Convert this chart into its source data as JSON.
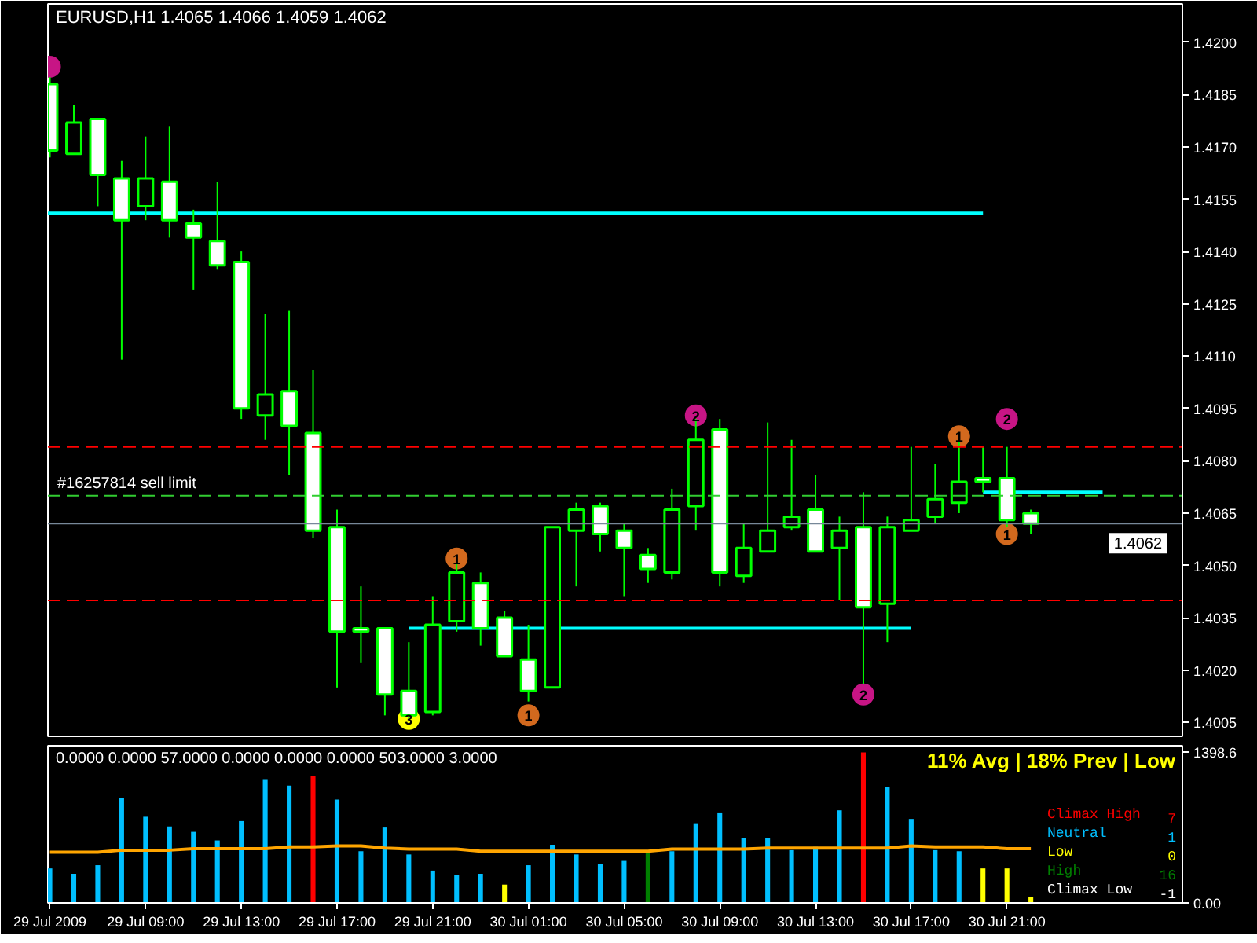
{
  "chart_data": [
    {
      "type": "candlestick",
      "title": "EURUSD,H1  1.4065 1.4066 1.4059 1.4062",
      "color": "#00ff00",
      "x": [
        "2009-07-29T05:00",
        "2009-07-29T06:00",
        "2009-07-29T07:00",
        "2009-07-29T08:00",
        "2009-07-29T09:00",
        "2009-07-29T10:00",
        "2009-07-29T11:00",
        "2009-07-29T12:00",
        "2009-07-29T13:00",
        "2009-07-29T14:00",
        "2009-07-29T15:00",
        "2009-07-29T16:00",
        "2009-07-29T17:00",
        "2009-07-29T18:00",
        "2009-07-29T19:00",
        "2009-07-29T20:00",
        "2009-07-29T21:00",
        "2009-07-29T22:00",
        "2009-07-29T23:00",
        "2009-07-30T00:00",
        "2009-07-30T01:00",
        "2009-07-30T02:00",
        "2009-07-30T03:00",
        "2009-07-30T04:00",
        "2009-07-30T05:00",
        "2009-07-30T06:00",
        "2009-07-30T07:00",
        "2009-07-30T08:00",
        "2009-07-30T09:00",
        "2009-07-30T10:00",
        "2009-07-30T11:00",
        "2009-07-30T12:00",
        "2009-07-30T13:00",
        "2009-07-30T14:00",
        "2009-07-30T15:00",
        "2009-07-30T16:00",
        "2009-07-30T17:00",
        "2009-07-30T18:00",
        "2009-07-30T19:00",
        "2009-07-30T20:00",
        "2009-07-30T21:00",
        "2009-07-30T22:00"
      ],
      "ohlc": [
        [
          1.4188,
          1.419,
          1.4167,
          1.4169
        ],
        [
          1.4168,
          1.4182,
          1.4168,
          1.4177
        ],
        [
          1.4178,
          1.4178,
          1.4153,
          1.4162
        ],
        [
          1.4161,
          1.4166,
          1.4109,
          1.4149
        ],
        [
          1.4153,
          1.4173,
          1.4149,
          1.4161
        ],
        [
          1.416,
          1.4176,
          1.4144,
          1.4149
        ],
        [
          1.4148,
          1.4152,
          1.4129,
          1.4144
        ],
        [
          1.4143,
          1.416,
          1.4135,
          1.4136
        ],
        [
          1.4137,
          1.414,
          1.4092,
          1.4095
        ],
        [
          1.4093,
          1.4122,
          1.4086,
          1.4099
        ],
        [
          1.41,
          1.4123,
          1.4076,
          1.409
        ],
        [
          1.4088,
          1.4106,
          1.4058,
          1.406
        ],
        [
          1.4061,
          1.4066,
          1.4015,
          1.4031
        ],
        [
          1.4032,
          1.4044,
          1.4022,
          1.4031
        ],
        [
          1.4032,
          1.4032,
          1.4007,
          1.4013
        ],
        [
          1.4014,
          1.4028,
          1.4006,
          1.4007
        ],
        [
          1.4008,
          1.4041,
          1.4007,
          1.4033
        ],
        [
          1.4034,
          1.4051,
          1.4031,
          1.4048
        ],
        [
          1.4045,
          1.4048,
          1.4027,
          1.4032
        ],
        [
          1.4035,
          1.4037,
          1.4024,
          1.4024
        ],
        [
          1.4023,
          1.4033,
          1.4011,
          1.4014
        ],
        [
          1.4015,
          1.4061,
          1.4015,
          1.4061
        ],
        [
          1.406,
          1.4068,
          1.4044,
          1.4066
        ],
        [
          1.4067,
          1.4068,
          1.4054,
          1.4059
        ],
        [
          1.406,
          1.4062,
          1.4041,
          1.4055
        ],
        [
          1.4053,
          1.4055,
          1.4045,
          1.4049
        ],
        [
          1.4048,
          1.4072,
          1.4046,
          1.4066
        ],
        [
          1.4067,
          1.4092,
          1.406,
          1.4086
        ],
        [
          1.4089,
          1.4092,
          1.4044,
          1.4048
        ],
        [
          1.4047,
          1.4062,
          1.4045,
          1.4055
        ],
        [
          1.4054,
          1.4091,
          1.4054,
          1.406
        ],
        [
          1.4061,
          1.4086,
          1.406,
          1.4064
        ],
        [
          1.4066,
          1.4076,
          1.4054,
          1.4054
        ],
        [
          1.4055,
          1.4064,
          1.404,
          1.406
        ],
        [
          1.4061,
          1.4071,
          1.4016,
          1.4038
        ],
        [
          1.4039,
          1.4064,
          1.4028,
          1.4061
        ],
        [
          1.406,
          1.4084,
          1.406,
          1.4063
        ],
        [
          1.4064,
          1.4079,
          1.4062,
          1.4069
        ],
        [
          1.4068,
          1.4086,
          1.4065,
          1.4074
        ],
        [
          1.4075,
          1.4084,
          1.4071,
          1.4074
        ],
        [
          1.4075,
          1.4084,
          1.4061,
          1.4063
        ],
        [
          1.4065,
          1.4066,
          1.4059,
          1.4062
        ]
      ],
      "colors": [
        "#ffffff",
        "#000000",
        "#ffffff",
        "#ffffff",
        "#000000",
        "#ffffff",
        "#ffffff",
        "#ffffff",
        "#ffffff",
        "#000000",
        "#ffffff",
        "#ffffff",
        "#ffffff",
        "#ffffff",
        "#ffffff",
        "#ffffff",
        "#000000",
        "#000000",
        "#ffffff",
        "#ffffff",
        "#ffffff",
        "#000000",
        "#000000",
        "#ffffff",
        "#ffffff",
        "#ffffff",
        "#000000",
        "#000000",
        "#ffffff",
        "#000000",
        "#000000",
        "#000000",
        "#ffffff",
        "#000000",
        "#ffffff",
        "#000000",
        "#000000",
        "#000000",
        "#000000",
        "#ffffff",
        "#ffffff",
        "#ffffff"
      ],
      "series": [
        {
          "type": "line",
          "color": "#00ffff",
          "x": [
            "2009-07-29T04:55",
            "2009-07-30T20:00"
          ],
          "values": [
            1.4151,
            1.4151
          ]
        },
        {
          "type": "line",
          "color": "#00ffff",
          "x": [
            "2009-07-29T20:00",
            "2009-07-30T17:00"
          ],
          "values": [
            1.4032,
            1.4032
          ]
        },
        {
          "type": "line",
          "color": "#00ffff",
          "x": [
            "2009-07-30T20:00",
            "2009-07-31T01:00"
          ],
          "values": [
            1.4071,
            1.4071
          ]
        },
        {
          "type": "scatter",
          "marker": "circle",
          "color": "#d2691e",
          "x": [
            "2009-07-29T22:00",
            "2009-07-30T01:00",
            "2009-07-30T19:00",
            "2009-07-30T21:00"
          ],
          "values": [
            1.4052,
            1.4007,
            1.4087,
            1.4059
          ]
        },
        {
          "type": "scatter",
          "marker": "circle",
          "color": "#c71585",
          "x": [
            "2009-07-29T05:00",
            "2009-07-30T08:00",
            "2009-07-30T15:00",
            "2009-07-30T21:00"
          ],
          "values": [
            1.4193,
            1.4093,
            1.4013,
            1.4092
          ]
        },
        {
          "type": "scatter",
          "marker": "circle",
          "color": "#ffff00",
          "x": [
            "2009-07-29T20:00"
          ],
          "values": [
            1.4006
          ]
        }
      ],
      "annotations": [
        {
          "text": "1",
          "x": "2009-07-29T22:00",
          "y": 1.4052
        },
        {
          "text": "1",
          "x": "2009-07-30T01:00",
          "y": 1.4007
        },
        {
          "text": "1",
          "x": "2009-07-30T19:00",
          "y": 1.4087
        },
        {
          "text": "1",
          "x": "2009-07-30T21:00",
          "y": 1.4059
        },
        {
          "text": "2",
          "x": "2009-07-30T08:00",
          "y": 1.4093
        },
        {
          "text": "2",
          "x": "2009-07-30T15:00",
          "y": 1.4013
        },
        {
          "text": "2",
          "x": "2009-07-30T21:00",
          "y": 1.4092
        },
        {
          "text": "3",
          "x": "2009-07-29T20:00",
          "y": 1.4006
        }
      ],
      "ref_lines": [
        {
          "axis": "y",
          "value": 1.4084,
          "color": "#ff0000",
          "line_style": "dashed"
        },
        {
          "axis": "y",
          "value": 1.404,
          "color": "#ff0000",
          "line_style": "dashed"
        },
        {
          "axis": "y",
          "value": 1.407,
          "label": "#16257814 sell limit",
          "color": "#32cd32",
          "line_style": "dashed"
        },
        {
          "axis": "y",
          "value": 1.4062,
          "label": "1.4062",
          "color": "#778899",
          "line_style": "solid"
        }
      ],
      "xlim": [
        "2009-07-29T04:55",
        "2009-07-31T04:20"
      ],
      "ylim": [
        1.4001,
        1.4211
      ],
      "yticks": [
        {
          "value": 1.42,
          "label": "1.4200"
        },
        {
          "value": 1.4185,
          "label": "1.4185"
        },
        {
          "value": 1.417,
          "label": "1.4170"
        },
        {
          "value": 1.4155,
          "label": "1.4155"
        },
        {
          "value": 1.414,
          "label": "1.4140"
        },
        {
          "value": 1.4125,
          "label": "1.4125"
        },
        {
          "value": 1.411,
          "label": "1.4110"
        },
        {
          "value": 1.4095,
          "label": "1.4095"
        },
        {
          "value": 1.408,
          "label": "1.4080"
        },
        {
          "value": 1.4065,
          "label": "1.4065"
        },
        {
          "value": 1.405,
          "label": "1.4050"
        },
        {
          "value": 1.4035,
          "label": "1.4035"
        },
        {
          "value": 1.402,
          "label": "1.4020"
        },
        {
          "value": 1.4005,
          "label": "1.4005"
        }
      ],
      "tick_labels": "y"
    },
    {
      "type": "bar",
      "title": "0.0000 0.0000 57.0000 0.0000 0.0000 0.0000 503.0000 3.0000",
      "x": [
        "2009-07-29T05:00",
        "2009-07-29T06:00",
        "2009-07-29T07:00",
        "2009-07-29T08:00",
        "2009-07-29T09:00",
        "2009-07-29T10:00",
        "2009-07-29T11:00",
        "2009-07-29T12:00",
        "2009-07-29T13:00",
        "2009-07-29T14:00",
        "2009-07-29T15:00",
        "2009-07-29T16:00",
        "2009-07-29T17:00",
        "2009-07-29T18:00",
        "2009-07-29T19:00",
        "2009-07-29T20:00",
        "2009-07-29T21:00",
        "2009-07-29T22:00",
        "2009-07-29T23:00",
        "2009-07-30T00:00",
        "2009-07-30T01:00",
        "2009-07-30T02:00",
        "2009-07-30T03:00",
        "2009-07-30T04:00",
        "2009-07-30T05:00",
        "2009-07-30T06:00",
        "2009-07-30T07:00",
        "2009-07-30T08:00",
        "2009-07-30T09:00",
        "2009-07-30T10:00",
        "2009-07-30T11:00",
        "2009-07-30T12:00",
        "2009-07-30T13:00",
        "2009-07-30T14:00",
        "2009-07-30T15:00",
        "2009-07-30T16:00",
        "2009-07-30T17:00",
        "2009-07-30T18:00",
        "2009-07-30T19:00",
        "2009-07-30T20:00",
        "2009-07-30T21:00",
        "2009-07-30T22:00"
      ],
      "series": [
        {
          "name": "Climax High",
          "color": "#ff0000",
          "values": [
            null,
            null,
            null,
            null,
            null,
            null,
            null,
            null,
            null,
            null,
            null,
            1180,
            null,
            null,
            null,
            null,
            null,
            null,
            null,
            null,
            null,
            null,
            null,
            null,
            null,
            null,
            null,
            null,
            null,
            null,
            null,
            null,
            null,
            null,
            1398.6,
            null,
            null,
            null,
            null,
            null,
            null,
            null
          ]
        },
        {
          "name": "Neutral",
          "color": "#00bfff",
          "values": [
            320,
            270,
            350,
            970,
            800,
            710,
            660,
            580,
            760,
            1150,
            1090,
            null,
            960,
            480,
            700,
            450,
            300,
            260,
            270,
            null,
            350,
            540,
            450,
            360,
            390,
            null,
            480,
            740,
            840,
            600,
            600,
            490,
            520,
            860,
            null,
            1080,
            780,
            490,
            480,
            null,
            null,
            null
          ]
        },
        {
          "name": "Low",
          "color": "#ffff00",
          "values": [
            null,
            null,
            null,
            null,
            null,
            null,
            null,
            null,
            null,
            null,
            null,
            null,
            null,
            null,
            null,
            null,
            null,
            null,
            null,
            170,
            null,
            null,
            null,
            null,
            null,
            null,
            null,
            null,
            null,
            null,
            null,
            null,
            null,
            null,
            null,
            null,
            null,
            null,
            null,
            320,
            320,
            57
          ]
        },
        {
          "name": "High",
          "color": "#008000",
          "values": [
            null,
            null,
            null,
            null,
            null,
            null,
            null,
            null,
            null,
            null,
            null,
            null,
            null,
            null,
            null,
            null,
            null,
            null,
            null,
            null,
            null,
            null,
            null,
            null,
            null,
            480,
            null,
            null,
            null,
            null,
            null,
            null,
            null,
            null,
            null,
            null,
            null,
            null,
            null,
            null,
            null,
            null
          ]
        },
        {
          "name": "Climax Low",
          "color": "#ffffff",
          "values": [
            null,
            null,
            null,
            null,
            null,
            null,
            null,
            null,
            null,
            null,
            null,
            null,
            null,
            null,
            null,
            null,
            null,
            null,
            null,
            null,
            null,
            null,
            null,
            null,
            null,
            null,
            null,
            null,
            null,
            null,
            null,
            null,
            null,
            null,
            null,
            null,
            null,
            null,
            null,
            null,
            null,
            null
          ]
        },
        {
          "type": "line",
          "color": "#ffa500",
          "values": [
            470,
            470,
            470,
            490,
            490,
            490,
            503,
            503,
            503,
            503,
            520,
            520,
            530,
            530,
            510,
            500,
            500,
            500,
            480,
            480,
            480,
            480,
            480,
            480,
            480,
            480,
            500,
            500,
            500,
            500,
            510,
            510,
            510,
            510,
            510,
            510,
            530,
            520,
            520,
            520,
            503,
            503
          ]
        }
      ],
      "annotations": [
        "11% Avg | 18% Prev | Low",
        "7",
        "1",
        "0",
        "16",
        "-1"
      ],
      "legend": "bottom right",
      "xlim": [
        "2009-07-29T04:55",
        "2009-07-31T04:20"
      ],
      "ylim": [
        0,
        1460
      ],
      "xticks": [
        {
          "value": "2009-07-29T05:00",
          "label": "29 Jul 2009"
        },
        {
          "value": "2009-07-29T09:00",
          "label": "29 Jul 09:00"
        },
        {
          "value": "2009-07-29T13:00",
          "label": "29 Jul 13:00"
        },
        {
          "value": "2009-07-29T17:00",
          "label": "29 Jul 17:00"
        },
        {
          "value": "2009-07-29T21:00",
          "label": "29 Jul 21:00"
        },
        {
          "value": "2009-07-30T01:00",
          "label": "30 Jul 01:00"
        },
        {
          "value": "2009-07-30T05:00",
          "label": "30 Jul 05:00"
        },
        {
          "value": "2009-07-30T09:00",
          "label": "30 Jul 09:00"
        },
        {
          "value": "2009-07-30T13:00",
          "label": "30 Jul 13:00"
        },
        {
          "value": "2009-07-30T17:00",
          "label": "30 Jul 17:00"
        },
        {
          "value": "2009-07-30T21:00",
          "label": "30 Jul 21:00"
        }
      ],
      "yticks": [
        {
          "value": 0,
          "label": "0.00"
        },
        1398.6
      ]
    }
  ]
}
